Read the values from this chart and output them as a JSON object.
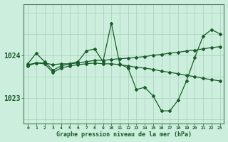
{
  "title": "Graphe pression niveau de la mer (hPa)",
  "bg_color": "#cceedd",
  "grid_color": "#aaccbb",
  "line_color": "#1a5c2a",
  "yticks": [
    1023,
    1024
  ],
  "xlim": [
    -0.5,
    23.5
  ],
  "ylim": [
    1022.4,
    1025.2
  ],
  "series": [
    {
      "x": [
        0,
        1,
        2,
        3,
        4,
        5,
        6,
        7,
        8,
        9,
        10,
        11,
        12,
        13,
        14,
        15,
        16,
        17,
        18,
        19,
        20,
        21,
        22,
        23
      ],
      "y": [
        1023.8,
        1024.05,
        1023.85,
        1023.65,
        1023.75,
        1023.8,
        1023.85,
        1024.1,
        1024.15,
        1023.85,
        1024.75,
        1023.8,
        1023.7,
        1023.2,
        1023.25,
        1023.05,
        1022.7,
        1022.7,
        1022.95,
        1023.4,
        1023.95,
        1024.45,
        1024.6,
        1024.5
      ]
    },
    {
      "x": [
        0,
        1,
        2,
        3,
        4,
        5,
        6,
        7,
        8,
        9,
        10,
        11,
        12,
        13,
        14,
        15,
        16,
        17,
        18,
        19,
        20,
        21,
        22,
        23
      ],
      "y": [
        1023.75,
        1023.82,
        1023.82,
        1023.78,
        1023.8,
        1023.8,
        1023.82,
        1023.85,
        1023.88,
        1023.88,
        1023.9,
        1023.92,
        1023.93,
        1023.95,
        1023.97,
        1024.0,
        1024.02,
        1024.05,
        1024.07,
        1024.1,
        1024.12,
        1024.15,
        1024.18,
        1024.2
      ]
    },
    {
      "x": [
        0,
        1,
        2,
        3,
        4,
        5,
        6,
        7,
        8,
        9,
        10,
        11,
        12,
        13,
        14,
        15,
        16,
        17,
        18,
        19,
        20,
        21,
        22,
        23
      ],
      "y": [
        1023.78,
        1023.82,
        1023.8,
        1023.6,
        1023.7,
        1023.75,
        1023.78,
        1023.8,
        1023.82,
        1023.8,
        1023.8,
        1023.78,
        1023.75,
        1023.72,
        1023.7,
        1023.67,
        1023.63,
        1023.6,
        1023.57,
        1023.53,
        1023.5,
        1023.46,
        1023.43,
        1023.4
      ]
    }
  ]
}
